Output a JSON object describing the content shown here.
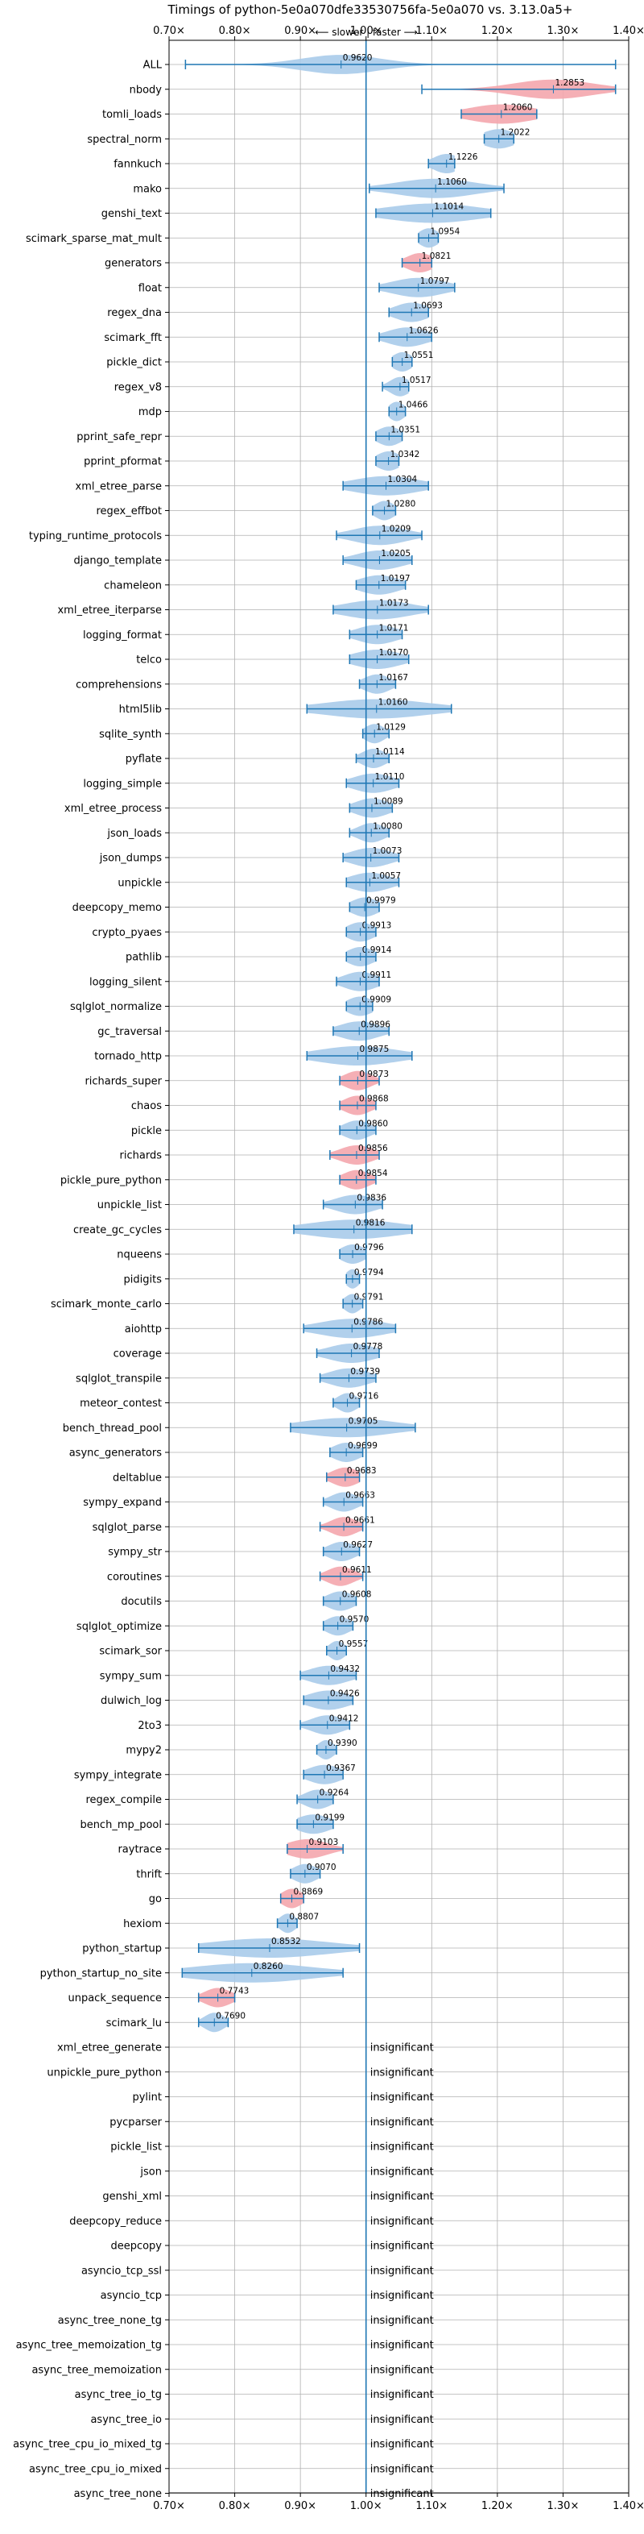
{
  "chart_data": {
    "type": "violin",
    "title": "Timings of python-5e0a070dfe33530756fa-5e0a070 vs. 3.13.0a5+",
    "subtitle": "⟵ slower | faster ⟶",
    "xlim": [
      0.7,
      1.4
    ],
    "xticks": [
      "0.70×",
      "0.80×",
      "0.90×",
      "1.00×",
      "1.10×",
      "1.20×",
      "1.30×",
      "1.40×"
    ],
    "grid": true,
    "insignificant_label": "insignificant",
    "colors": {
      "faster": "#1f77b4",
      "faster_fill": "#a9cbea",
      "slower_fill": "#f4a6ad",
      "reference": "#1f77b4"
    },
    "benchmarks": [
      {
        "name": "ALL",
        "value": 0.962,
        "label": "0.9620",
        "min": 0.725,
        "max": 1.38,
        "spread": 0.06,
        "slower": false
      },
      {
        "name": "nbody",
        "value": 1.2853,
        "label": "1.2853",
        "min": 1.085,
        "max": 1.38,
        "spread": 0.06,
        "slower": true
      },
      {
        "name": "tomli_loads",
        "value": 1.206,
        "label": "1.2060",
        "min": 1.145,
        "max": 1.26,
        "spread": 0.05,
        "slower": true
      },
      {
        "name": "spectral_norm",
        "value": 1.2022,
        "label": "1.2022",
        "min": 1.18,
        "max": 1.225,
        "spread": 0.025,
        "slower": false
      },
      {
        "name": "fannkuch",
        "value": 1.1226,
        "label": "1.1226",
        "min": 1.095,
        "max": 1.135,
        "spread": 0.02,
        "slower": false
      },
      {
        "name": "mako",
        "value": 1.106,
        "label": "1.1060",
        "min": 1.005,
        "max": 1.21,
        "spread": 0.06,
        "slower": false
      },
      {
        "name": "genshi_text",
        "value": 1.1014,
        "label": "1.1014",
        "min": 1.015,
        "max": 1.19,
        "spread": 0.07,
        "slower": false
      },
      {
        "name": "scimark_sparse_mat_mult",
        "value": 1.0954,
        "label": "1.0954",
        "min": 1.08,
        "max": 1.11,
        "spread": 0.015,
        "slower": false
      },
      {
        "name": "generators",
        "value": 1.0821,
        "label": "1.0821",
        "min": 1.055,
        "max": 1.1,
        "spread": 0.02,
        "slower": true
      },
      {
        "name": "float",
        "value": 1.0797,
        "label": "1.0797",
        "min": 1.02,
        "max": 1.135,
        "spread": 0.04,
        "slower": false
      },
      {
        "name": "regex_dna",
        "value": 1.0693,
        "label": "1.0693",
        "min": 1.035,
        "max": 1.095,
        "spread": 0.025,
        "slower": false
      },
      {
        "name": "scimark_fft",
        "value": 1.0626,
        "label": "1.0626",
        "min": 1.02,
        "max": 1.1,
        "spread": 0.03,
        "slower": false
      },
      {
        "name": "pickle_dict",
        "value": 1.0551,
        "label": "1.0551",
        "min": 1.04,
        "max": 1.07,
        "spread": 0.015,
        "slower": false
      },
      {
        "name": "regex_v8",
        "value": 1.0517,
        "label": "1.0517",
        "min": 1.025,
        "max": 1.065,
        "spread": 0.015,
        "slower": false
      },
      {
        "name": "mdp",
        "value": 1.0466,
        "label": "1.0466",
        "min": 1.035,
        "max": 1.06,
        "spread": 0.012,
        "slower": false
      },
      {
        "name": "pprint_safe_repr",
        "value": 1.0351,
        "label": "1.0351",
        "min": 1.015,
        "max": 1.055,
        "spread": 0.018,
        "slower": false
      },
      {
        "name": "pprint_pformat",
        "value": 1.0342,
        "label": "1.0342",
        "min": 1.015,
        "max": 1.05,
        "spread": 0.018,
        "slower": false
      },
      {
        "name": "xml_etree_parse",
        "value": 1.0304,
        "label": "1.0304",
        "min": 0.965,
        "max": 1.095,
        "spread": 0.05,
        "slower": false
      },
      {
        "name": "regex_effbot",
        "value": 1.028,
        "label": "1.0280",
        "min": 1.01,
        "max": 1.045,
        "spread": 0.015,
        "slower": false
      },
      {
        "name": "typing_runtime_protocols",
        "value": 1.0209,
        "label": "1.0209",
        "min": 0.955,
        "max": 1.085,
        "spread": 0.04,
        "slower": false
      },
      {
        "name": "django_template",
        "value": 1.0205,
        "label": "1.0205",
        "min": 0.965,
        "max": 1.07,
        "spread": 0.035,
        "slower": false
      },
      {
        "name": "chameleon",
        "value": 1.0197,
        "label": "1.0197",
        "min": 0.985,
        "max": 1.06,
        "spread": 0.03,
        "slower": false
      },
      {
        "name": "xml_etree_iterparse",
        "value": 1.0173,
        "label": "1.0173",
        "min": 0.95,
        "max": 1.095,
        "spread": 0.05,
        "slower": false
      },
      {
        "name": "logging_format",
        "value": 1.0171,
        "label": "1.0171",
        "min": 0.975,
        "max": 1.055,
        "spread": 0.03,
        "slower": false
      },
      {
        "name": "telco",
        "value": 1.017,
        "label": "1.0170",
        "min": 0.975,
        "max": 1.065,
        "spread": 0.035,
        "slower": false
      },
      {
        "name": "comprehensions",
        "value": 1.0167,
        "label": "1.0167",
        "min": 0.99,
        "max": 1.045,
        "spread": 0.02,
        "slower": false
      },
      {
        "name": "html5lib",
        "value": 1.016,
        "label": "1.0160",
        "min": 0.91,
        "max": 1.13,
        "spread": 0.08,
        "slower": false
      },
      {
        "name": "sqlite_synth",
        "value": 1.0129,
        "label": "1.0129",
        "min": 0.995,
        "max": 1.035,
        "spread": 0.015,
        "slower": false
      },
      {
        "name": "pyflate",
        "value": 1.0114,
        "label": "1.0114",
        "min": 0.985,
        "max": 1.035,
        "spread": 0.018,
        "slower": false
      },
      {
        "name": "logging_simple",
        "value": 1.011,
        "label": "1.0110",
        "min": 0.97,
        "max": 1.05,
        "spread": 0.03,
        "slower": false
      },
      {
        "name": "xml_etree_process",
        "value": 1.0089,
        "label": "1.0089",
        "min": 0.975,
        "max": 1.04,
        "spread": 0.025,
        "slower": false
      },
      {
        "name": "json_loads",
        "value": 1.008,
        "label": "1.0080",
        "min": 0.975,
        "max": 1.035,
        "spread": 0.02,
        "slower": false
      },
      {
        "name": "json_dumps",
        "value": 1.0073,
        "label": "1.0073",
        "min": 0.965,
        "max": 1.05,
        "spread": 0.03,
        "slower": false
      },
      {
        "name": "unpickle",
        "value": 1.0057,
        "label": "1.0057",
        "min": 0.97,
        "max": 1.05,
        "spread": 0.03,
        "slower": false
      },
      {
        "name": "deepcopy_memo",
        "value": 0.9979,
        "label": "0.9979",
        "min": 0.975,
        "max": 1.02,
        "spread": 0.02,
        "slower": false
      },
      {
        "name": "crypto_pyaes",
        "value": 0.9913,
        "label": "0.9913",
        "min": 0.97,
        "max": 1.015,
        "spread": 0.02,
        "slower": false
      },
      {
        "name": "pathlib",
        "value": 0.9914,
        "label": "0.9914",
        "min": 0.97,
        "max": 1.015,
        "spread": 0.02,
        "slower": false
      },
      {
        "name": "logging_silent",
        "value": 0.9911,
        "label": "0.9911",
        "min": 0.955,
        "max": 1.02,
        "spread": 0.025,
        "slower": false
      },
      {
        "name": "sqlglot_normalize",
        "value": 0.9909,
        "label": "0.9909",
        "min": 0.97,
        "max": 1.01,
        "spread": 0.02,
        "slower": false
      },
      {
        "name": "gc_traversal",
        "value": 0.9896,
        "label": "0.9896",
        "min": 0.95,
        "max": 1.035,
        "spread": 0.03,
        "slower": false
      },
      {
        "name": "tornado_http",
        "value": 0.9875,
        "label": "0.9875",
        "min": 0.91,
        "max": 1.07,
        "spread": 0.06,
        "slower": false
      },
      {
        "name": "richards_super",
        "value": 0.9873,
        "label": "0.9873",
        "min": 0.96,
        "max": 1.02,
        "spread": 0.02,
        "slower": true
      },
      {
        "name": "chaos",
        "value": 0.9868,
        "label": "0.9868",
        "min": 0.96,
        "max": 1.015,
        "spread": 0.02,
        "slower": true
      },
      {
        "name": "pickle",
        "value": 0.986,
        "label": "0.9860",
        "min": 0.96,
        "max": 1.015,
        "spread": 0.02,
        "slower": false
      },
      {
        "name": "richards",
        "value": 0.9856,
        "label": "0.9856",
        "min": 0.945,
        "max": 1.02,
        "spread": 0.025,
        "slower": true
      },
      {
        "name": "pickle_pure_python",
        "value": 0.9854,
        "label": "0.9854",
        "min": 0.96,
        "max": 1.015,
        "spread": 0.02,
        "slower": true
      },
      {
        "name": "unpickle_list",
        "value": 0.9836,
        "label": "0.9836",
        "min": 0.935,
        "max": 1.025,
        "spread": 0.03,
        "slower": false
      },
      {
        "name": "create_gc_cycles",
        "value": 0.9816,
        "label": "0.9816",
        "min": 0.89,
        "max": 1.07,
        "spread": 0.07,
        "slower": false
      },
      {
        "name": "nqueens",
        "value": 0.9796,
        "label": "0.9796",
        "min": 0.96,
        "max": 1.0,
        "spread": 0.018,
        "slower": false
      },
      {
        "name": "pidigits",
        "value": 0.9794,
        "label": "0.9794",
        "min": 0.97,
        "max": 0.99,
        "spread": 0.01,
        "slower": false
      },
      {
        "name": "scimark_monte_carlo",
        "value": 0.9791,
        "label": "0.9791",
        "min": 0.965,
        "max": 0.995,
        "spread": 0.012,
        "slower": false
      },
      {
        "name": "aiohttp",
        "value": 0.9786,
        "label": "0.9786",
        "min": 0.905,
        "max": 1.045,
        "spread": 0.05,
        "slower": false
      },
      {
        "name": "coverage",
        "value": 0.9778,
        "label": "0.9778",
        "min": 0.925,
        "max": 1.02,
        "spread": 0.035,
        "slower": false
      },
      {
        "name": "sqlglot_transpile",
        "value": 0.9739,
        "label": "0.9739",
        "min": 0.93,
        "max": 1.015,
        "spread": 0.03,
        "slower": false
      },
      {
        "name": "meteor_contest",
        "value": 0.9716,
        "label": "0.9716",
        "min": 0.95,
        "max": 0.99,
        "spread": 0.015,
        "slower": false
      },
      {
        "name": "bench_thread_pool",
        "value": 0.9705,
        "label": "0.9705",
        "min": 0.885,
        "max": 1.075,
        "spread": 0.07,
        "slower": false
      },
      {
        "name": "async_generators",
        "value": 0.9699,
        "label": "0.9699",
        "min": 0.945,
        "max": 0.995,
        "spread": 0.02,
        "slower": false
      },
      {
        "name": "deltablue",
        "value": 0.9683,
        "label": "0.9683",
        "min": 0.94,
        "max": 0.99,
        "spread": 0.02,
        "slower": true
      },
      {
        "name": "sympy_expand",
        "value": 0.9663,
        "label": "0.9663",
        "min": 0.935,
        "max": 0.995,
        "spread": 0.02,
        "slower": false
      },
      {
        "name": "sqlglot_parse",
        "value": 0.9661,
        "label": "0.9661",
        "min": 0.93,
        "max": 0.995,
        "spread": 0.02,
        "slower": true
      },
      {
        "name": "sympy_str",
        "value": 0.9627,
        "label": "0.9627",
        "min": 0.935,
        "max": 0.99,
        "spread": 0.02,
        "slower": false
      },
      {
        "name": "coroutines",
        "value": 0.9611,
        "label": "0.9611",
        "min": 0.93,
        "max": 0.995,
        "spread": 0.02,
        "slower": true
      },
      {
        "name": "docutils",
        "value": 0.9608,
        "label": "0.9608",
        "min": 0.935,
        "max": 0.985,
        "spread": 0.02,
        "slower": false
      },
      {
        "name": "sqlglot_optimize",
        "value": 0.957,
        "label": "0.9570",
        "min": 0.935,
        "max": 0.98,
        "spread": 0.018,
        "slower": false
      },
      {
        "name": "scimark_sor",
        "value": 0.9557,
        "label": "0.9557",
        "min": 0.94,
        "max": 0.97,
        "spread": 0.012,
        "slower": false
      },
      {
        "name": "sympy_sum",
        "value": 0.9432,
        "label": "0.9432",
        "min": 0.9,
        "max": 0.985,
        "spread": 0.03,
        "slower": false
      },
      {
        "name": "dulwich_log",
        "value": 0.9426,
        "label": "0.9426",
        "min": 0.905,
        "max": 0.98,
        "spread": 0.03,
        "slower": false
      },
      {
        "name": "2to3",
        "value": 0.9412,
        "label": "0.9412",
        "min": 0.9,
        "max": 0.975,
        "spread": 0.025,
        "slower": false
      },
      {
        "name": "mypy2",
        "value": 0.939,
        "label": "0.9390",
        "min": 0.925,
        "max": 0.955,
        "spread": 0.012,
        "slower": false
      },
      {
        "name": "sympy_integrate",
        "value": 0.9367,
        "label": "0.9367",
        "min": 0.905,
        "max": 0.965,
        "spread": 0.025,
        "slower": false
      },
      {
        "name": "regex_compile",
        "value": 0.9264,
        "label": "0.9264",
        "min": 0.895,
        "max": 0.95,
        "spread": 0.02,
        "slower": false
      },
      {
        "name": "bench_mp_pool",
        "value": 0.9199,
        "label": "0.9199",
        "min": 0.895,
        "max": 0.95,
        "spread": 0.025,
        "slower": false
      },
      {
        "name": "raytrace",
        "value": 0.9103,
        "label": "0.9103",
        "min": 0.88,
        "max": 0.965,
        "spread": 0.03,
        "slower": true
      },
      {
        "name": "thrift",
        "value": 0.907,
        "label": "0.9070",
        "min": 0.885,
        "max": 0.93,
        "spread": 0.018,
        "slower": false
      },
      {
        "name": "go",
        "value": 0.8869,
        "label": "0.8869",
        "min": 0.87,
        "max": 0.905,
        "spread": 0.015,
        "slower": true
      },
      {
        "name": "hexiom",
        "value": 0.8807,
        "label": "0.8807",
        "min": 0.865,
        "max": 0.895,
        "spread": 0.012,
        "slower": false
      },
      {
        "name": "python_startup",
        "value": 0.8532,
        "label": "0.8532",
        "min": 0.745,
        "max": 0.99,
        "spread": 0.09,
        "slower": false
      },
      {
        "name": "python_startup_no_site",
        "value": 0.826,
        "label": "0.8260",
        "min": 0.72,
        "max": 0.965,
        "spread": 0.09,
        "slower": false
      },
      {
        "name": "unpack_sequence",
        "value": 0.7743,
        "label": "0.7743",
        "min": 0.745,
        "max": 0.8,
        "spread": 0.02,
        "slower": true
      },
      {
        "name": "scimark_lu",
        "value": 0.769,
        "label": "0.7690",
        "min": 0.745,
        "max": 0.79,
        "spread": 0.015,
        "slower": false
      }
    ],
    "insignificant": [
      "xml_etree_generate",
      "unpickle_pure_python",
      "pylint",
      "pycparser",
      "pickle_list",
      "json",
      "genshi_xml",
      "deepcopy_reduce",
      "deepcopy",
      "asyncio_tcp_ssl",
      "asyncio_tcp",
      "async_tree_none_tg",
      "async_tree_memoization_tg",
      "async_tree_memoization",
      "async_tree_io_tg",
      "async_tree_io",
      "async_tree_cpu_io_mixed_tg",
      "async_tree_cpu_io_mixed",
      "async_tree_none"
    ]
  }
}
